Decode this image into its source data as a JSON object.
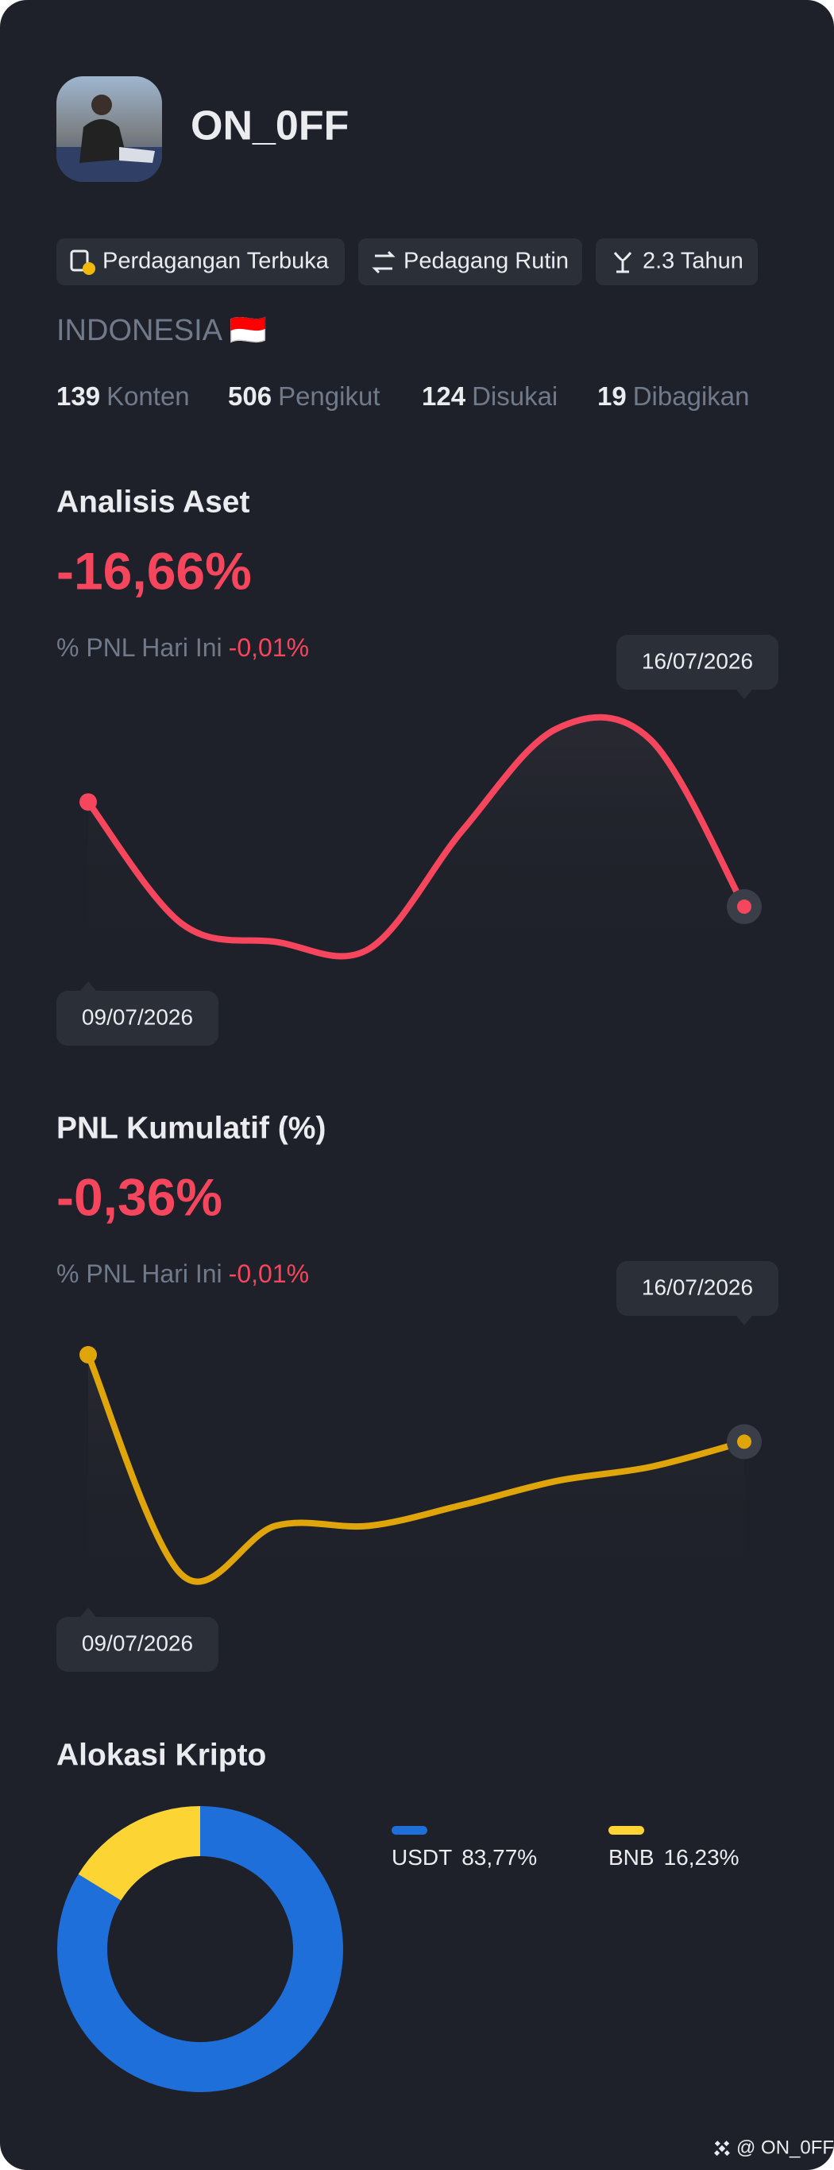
{
  "profile": {
    "name": "ON_0FF",
    "tags": [
      "Perdagangan Terbuka",
      "Pedagang Rutin",
      "2.3 Tahun"
    ],
    "country": "INDONESIA 🇮🇩",
    "stats": [
      {
        "value": 139,
        "label": "Konten"
      },
      {
        "value": 506,
        "label": "Pengikut"
      },
      {
        "value": 124,
        "label": "Disukai"
      },
      {
        "value": 19,
        "label": "Dibagikan"
      }
    ]
  },
  "chart_data": [
    {
      "type": "line",
      "title": "Analisis Aset",
      "headline": "-16,66%",
      "pnl_label": "% PNL Hari Ini",
      "pnl_value": "-0,01%",
      "categories": [
        "09/07/2026",
        null,
        null,
        null,
        null,
        null,
        null,
        "16/07/2026"
      ],
      "values": [
        -9.1,
        -17.9,
        -19.2,
        -19.7,
        -11.1,
        -3.8,
        -4.6,
        -16.66
      ],
      "color": "#f6465d"
    },
    {
      "type": "line",
      "title": "PNL Kumulatif (%)",
      "headline": "-0,36%",
      "pnl_label": "% PNL Hari Ini",
      "pnl_value": "-0,01%",
      "categories": [
        "09/07/2026",
        null,
        null,
        null,
        null,
        null,
        null,
        "16/07/2026"
      ],
      "values": [
        0.26,
        -1.31,
        -0.96,
        -0.96,
        -0.81,
        -0.64,
        -0.54,
        -0.36
      ],
      "color": "#e0a50b"
    },
    {
      "type": "pie",
      "title": "Alokasi Kripto",
      "categories": [
        "USDT",
        "BNB"
      ],
      "values": [
        83.77,
        16.23
      ],
      "value_labels": [
        "83,77%",
        "16,23%"
      ],
      "colors": [
        "#1e6fd9",
        "#fcd535"
      ]
    }
  ],
  "footer": "@ ON_0FF"
}
